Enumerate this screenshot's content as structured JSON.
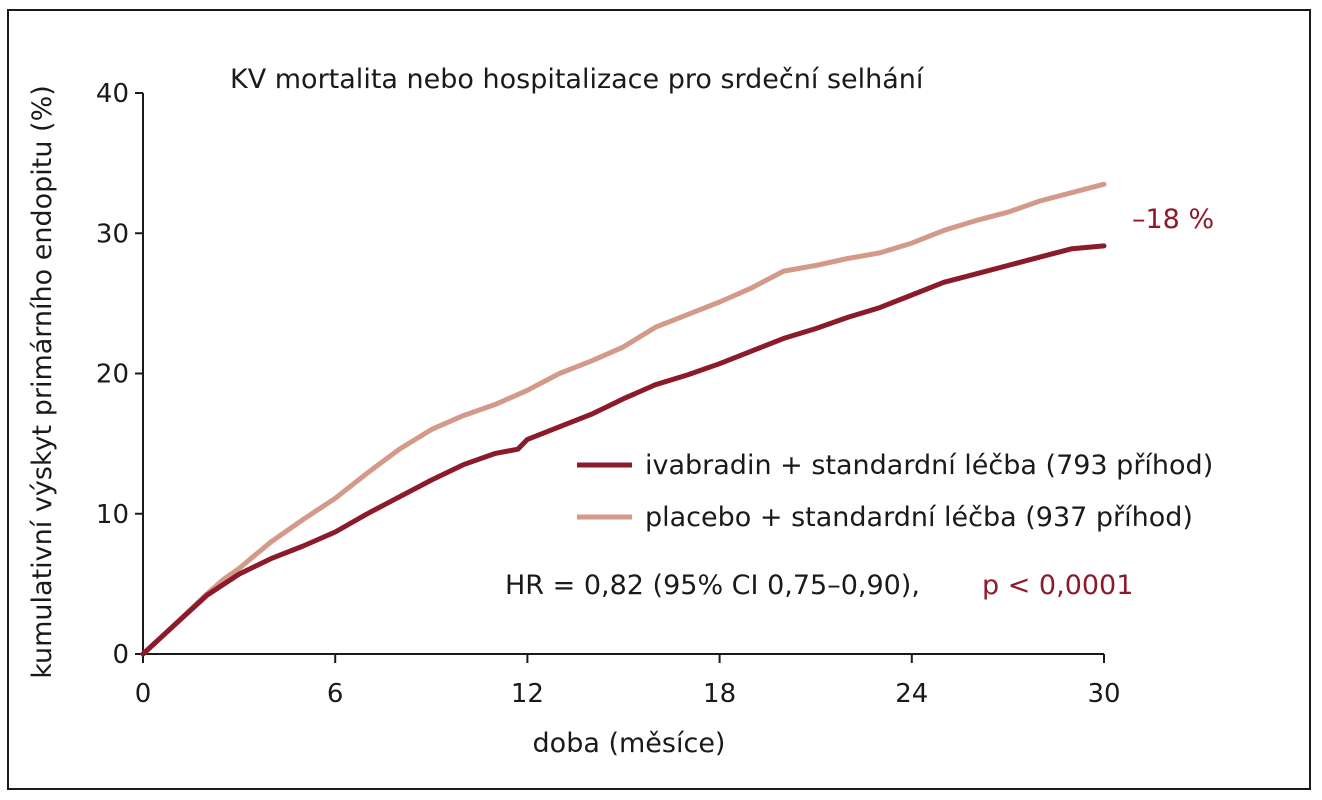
{
  "chart_data": {
    "type": "line",
    "title": "KV mortalita nebo hospitalizace pro srdeční selhání",
    "xlabel": "doba (měsíce)",
    "ylabel": "kumulativní výskyt primárního endopitu (%)",
    "xlim": [
      0,
      30
    ],
    "ylim": [
      0,
      40
    ],
    "xticks": [
      0,
      6,
      12,
      18,
      24,
      30
    ],
    "yticks": [
      0,
      10,
      20,
      30,
      40
    ],
    "grid": false,
    "legend_position": "right",
    "series": [
      {
        "name": "ivabradin + standardní léčba (793 příhod)",
        "color": "#8b1a2b",
        "x": [
          0,
          1,
          2,
          3,
          4,
          5,
          6,
          7,
          8,
          9,
          10,
          11,
          11.7,
          12,
          13,
          14,
          15,
          16,
          17,
          18,
          19,
          20,
          21,
          22,
          23,
          24,
          25,
          26,
          27,
          28,
          29,
          30
        ],
        "y": [
          0,
          2.1,
          4.2,
          5.7,
          6.8,
          7.7,
          8.7,
          10.0,
          11.2,
          12.4,
          13.5,
          14.3,
          14.6,
          15.3,
          16.2,
          17.1,
          18.2,
          19.2,
          19.9,
          20.7,
          21.6,
          22.5,
          23.2,
          24.0,
          24.7,
          25.6,
          26.5,
          27.1,
          27.7,
          28.3,
          28.9,
          29.1
        ]
      },
      {
        "name": "placebo + standardní léčba (937 příhod)",
        "color": "#d39a8a",
        "x": [
          0,
          1,
          2,
          2.5,
          3,
          4,
          5,
          6,
          7,
          8,
          9,
          10,
          11,
          12,
          13,
          14,
          15,
          16,
          17,
          18,
          19,
          20,
          21,
          22,
          23,
          24,
          25,
          26,
          27,
          28,
          29,
          30
        ],
        "y": [
          0,
          2.1,
          4.3,
          5.3,
          6.1,
          8.0,
          9.6,
          11.1,
          12.9,
          14.6,
          16.0,
          17.0,
          17.8,
          18.8,
          20.0,
          20.9,
          21.9,
          23.3,
          24.2,
          25.1,
          26.1,
          27.3,
          27.7,
          28.2,
          28.6,
          29.3,
          30.2,
          30.9,
          31.5,
          32.3,
          32.9,
          33.5
        ]
      }
    ],
    "annotations": [
      {
        "text": "–18 %",
        "color": "#8b1a2b"
      },
      {
        "text": "HR = 0,82 (95% CI 0,75–0,90),",
        "color": "#1a1a1a"
      },
      {
        "text": "p < 0,0001",
        "color": "#8b1a2b"
      }
    ]
  }
}
